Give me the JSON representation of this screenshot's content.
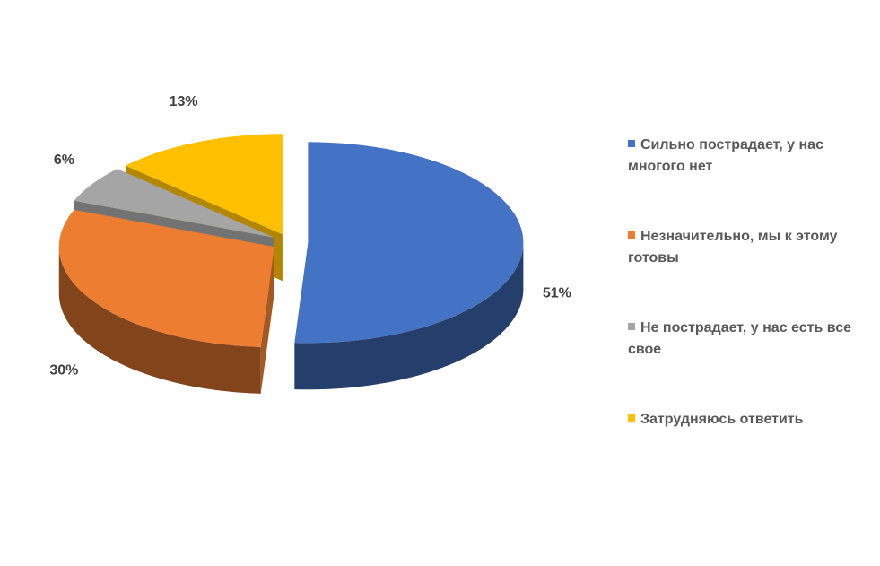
{
  "chart_data": {
    "type": "pie",
    "categories": [
      "Сильно пострадает, у нас многого нет",
      "Незначительно, мы к этому готовы",
      "Не пострадает, у нас есть все свое",
      "Затрудняюсь ответить"
    ],
    "values": [
      51,
      30,
      6,
      13
    ],
    "value_labels": [
      "51%",
      "30%",
      "6%",
      "13%"
    ],
    "colors": [
      "#4472c4",
      "#ed7d31",
      "#a5a5a5",
      "#ffc000"
    ],
    "legend": "right"
  }
}
